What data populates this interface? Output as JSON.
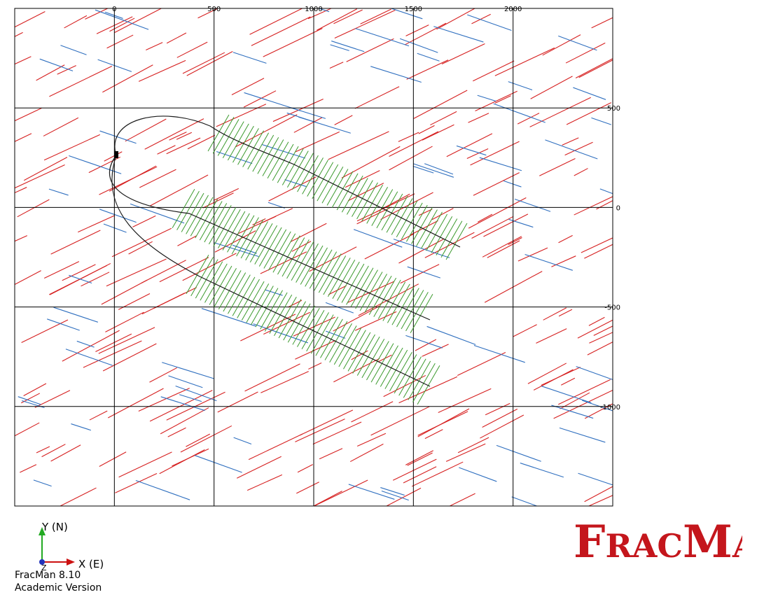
{
  "plot": {
    "x_ticks": [
      {
        "value": 0,
        "label": "0"
      },
      {
        "value": 500,
        "label": "500"
      },
      {
        "value": 1000,
        "label": "1000"
      },
      {
        "value": 1500,
        "label": "1500"
      },
      {
        "value": 2000,
        "label": "2000"
      }
    ],
    "y_ticks": [
      {
        "value": 500,
        "label": "500"
      },
      {
        "value": 0,
        "label": "0"
      },
      {
        "value": -500,
        "label": "-500"
      },
      {
        "value": -1000,
        "label": "-1000"
      }
    ],
    "x_range": [
      -500,
      2500
    ],
    "y_range": [
      -1500,
      1000
    ],
    "colors": {
      "red_fractures": "#d62020",
      "blue_fractures": "#2f6fbf",
      "hydraulic_fractures": "#3c9a2e",
      "wellbore": "#1a1a1a",
      "grid": "#000000"
    }
  },
  "triad": {
    "y_label": "Y (N)",
    "x_label": "X (E)",
    "z_label": "Z",
    "y_color": "#22aa22",
    "x_color": "#cc1111",
    "z_color": "#2233bb"
  },
  "footer": {
    "line1": "FracMan 8.10",
    "line2": "Academic Version"
  },
  "logo": {
    "text": "FracMan",
    "color": "#c4161c"
  }
}
